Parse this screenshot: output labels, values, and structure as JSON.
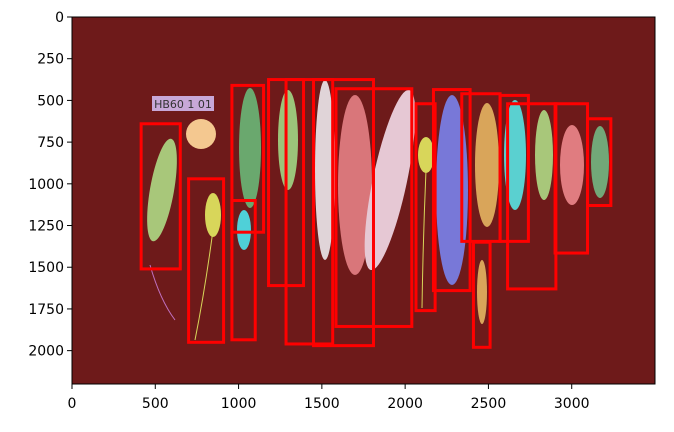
{
  "chart_data": {
    "type": "image-boxes",
    "image_label": "HB60  1  01",
    "xlim": [
      0,
      3500
    ],
    "ylim": [
      2200,
      0
    ],
    "xticks": [
      0,
      500,
      1000,
      1500,
      2000,
      2500,
      3000
    ],
    "yticks": [
      0,
      250,
      500,
      750,
      1000,
      1250,
      1500,
      1750,
      2000
    ],
    "box_color": "#ff0000",
    "background": "#6e1a1a",
    "boxes": [
      {
        "x": [
          415,
          650
        ],
        "y": [
          640,
          1510
        ]
      },
      {
        "x": [
          700,
          910
        ],
        "y": [
          970,
          1950
        ]
      },
      {
        "x": [
          960,
          1150
        ],
        "y": [
          410,
          1290
        ]
      },
      {
        "x": [
          960,
          1100
        ],
        "y": [
          1100,
          1935
        ]
      },
      {
        "x": [
          1180,
          1390
        ],
        "y": [
          375,
          1610
        ]
      },
      {
        "x": [
          1285,
          1565
        ],
        "y": [
          375,
          1960
        ]
      },
      {
        "x": [
          1450,
          1810
        ],
        "y": [
          375,
          1970
        ]
      },
      {
        "x": [
          1585,
          2040
        ],
        "y": [
          430,
          1855
        ]
      },
      {
        "x": [
          2065,
          2180
        ],
        "y": [
          520,
          1760
        ]
      },
      {
        "x": [
          2170,
          2390
        ],
        "y": [
          435,
          1640
        ]
      },
      {
        "x": [
          2340,
          2570
        ],
        "y": [
          460,
          1345
        ]
      },
      {
        "x": [
          2410,
          2510
        ],
        "y": [
          1350,
          1980
        ]
      },
      {
        "x": [
          2570,
          2740
        ],
        "y": [
          470,
          1345
        ]
      },
      {
        "x": [
          2615,
          2905
        ],
        "y": [
          520,
          1630
        ]
      },
      {
        "x": [
          2900,
          3095
        ],
        "y": [
          520,
          1415
        ]
      },
      {
        "x": [
          3095,
          3235
        ],
        "y": [
          610,
          1130
        ]
      }
    ]
  }
}
